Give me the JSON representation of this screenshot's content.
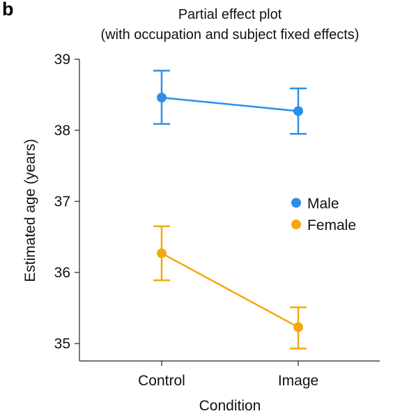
{
  "panel_label": "b",
  "chart_data": {
    "type": "line",
    "title": "Partial effect plot",
    "subtitle": "(with occupation and subject fixed effects)",
    "xlabel": "Condition",
    "ylabel": "Estimated age (years)",
    "categories": [
      "Control",
      "Image"
    ],
    "ylim": [
      34.75,
      39.05
    ],
    "yticks": [
      35,
      36,
      37,
      38,
      39
    ],
    "grid": false,
    "legend_position": "center-right",
    "series": [
      {
        "name": "Male",
        "color": "#2b8fe8",
        "values": [
          38.46,
          38.27
        ],
        "ci_low": [
          38.09,
          37.95
        ],
        "ci_high": [
          38.84,
          38.59
        ]
      },
      {
        "name": "Female",
        "color": "#f5a80f",
        "values": [
          36.27,
          35.23
        ],
        "ci_low": [
          35.89,
          34.93
        ],
        "ci_high": [
          36.65,
          35.51
        ]
      }
    ]
  }
}
